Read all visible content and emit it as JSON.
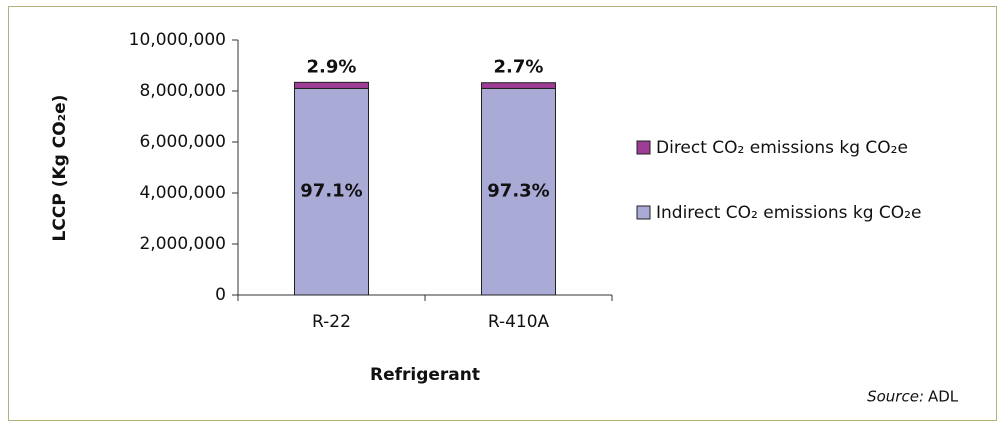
{
  "chart_data": {
    "type": "stacked_bar",
    "categories": [
      "R-22",
      "R-410A"
    ],
    "series": [
      {
        "name": "Indirect CO₂ emissions kg CO₂e",
        "color": "#aaaad6",
        "values": [
          8100000,
          8100000
        ],
        "labels": [
          "97.1%",
          "97.3%"
        ]
      },
      {
        "name": "Direct CO₂ emissions kg CO₂e",
        "color": "#9e3c96",
        "values": [
          240000,
          225000
        ],
        "labels": [
          "2.9%",
          "2.7%"
        ]
      }
    ],
    "ylim": [
      0,
      10000000
    ],
    "yticks": [
      0,
      {
        "value": 2000000,
        "label": "2,000,000"
      },
      {
        "value": 4000000,
        "label": "4,000,000"
      },
      {
        "value": 6000000,
        "label": "6,000,000"
      },
      {
        "value": 8000000,
        "label": "8,000,000"
      },
      {
        "value": 10000000,
        "label": "10,000,000"
      }
    ],
    "ylabel": "LCCP (Kg CO₂e)",
    "xlabel": "Refrigerant",
    "legend": "right",
    "source_prefix": "Source:",
    "source": "ADL"
  }
}
